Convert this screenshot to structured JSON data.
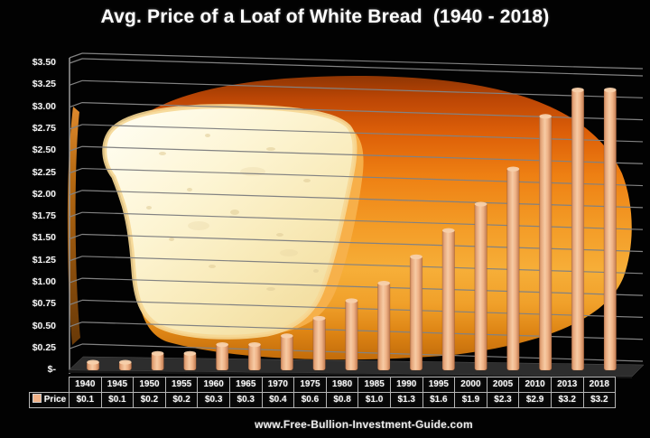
{
  "page": {
    "background": "#020202"
  },
  "chart_data": {
    "type": "bar",
    "title": "Avg. Price of a Loaf of White Bread  (1940 - 2018)",
    "categories": [
      "1940",
      "1945",
      "1950",
      "1955",
      "1960",
      "1965",
      "1970",
      "1975",
      "1980",
      "1985",
      "1990",
      "1995",
      "2000",
      "2005",
      "2010",
      "2013",
      "2018"
    ],
    "series": [
      {
        "name": "Price",
        "values": [
          0.1,
          0.1,
          0.2,
          0.2,
          0.3,
          0.3,
          0.4,
          0.6,
          0.8,
          1.0,
          1.3,
          1.6,
          1.9,
          2.3,
          2.9,
          3.2,
          3.2
        ]
      }
    ],
    "value_labels": [
      "$0.1",
      "$0.1",
      "$0.2",
      "$0.2",
      "$0.3",
      "$0.3",
      "$0.4",
      "$0.6",
      "$0.8",
      "$1.0",
      "$1.3",
      "$1.6",
      "$1.9",
      "$2.3",
      "$2.9",
      "$3.2",
      "$3.2"
    ],
    "y_tick_labels": [
      "$3.50",
      "$3.25",
      "$3.00",
      "$2.75",
      "$2.50",
      "$2.25",
      "$2.00",
      "$1.75",
      "$1.50",
      "$1.25",
      "$1.00",
      "$0.75",
      "$0.50",
      "$0.25",
      "$-"
    ],
    "xlabel": "",
    "ylabel": "",
    "ylim": [
      0,
      3.5
    ],
    "y_step": 0.25,
    "grid": true,
    "legend_position": "bottom-left table cell",
    "bar_color": "#f2b88f",
    "gridline_color": "#828282",
    "background_art": "sliced-white-bread-loaf-illustration",
    "style": "3d-perspective bars on black background"
  },
  "footer": {
    "url": "www.Free-Bullion-Investment-Guide.com"
  }
}
